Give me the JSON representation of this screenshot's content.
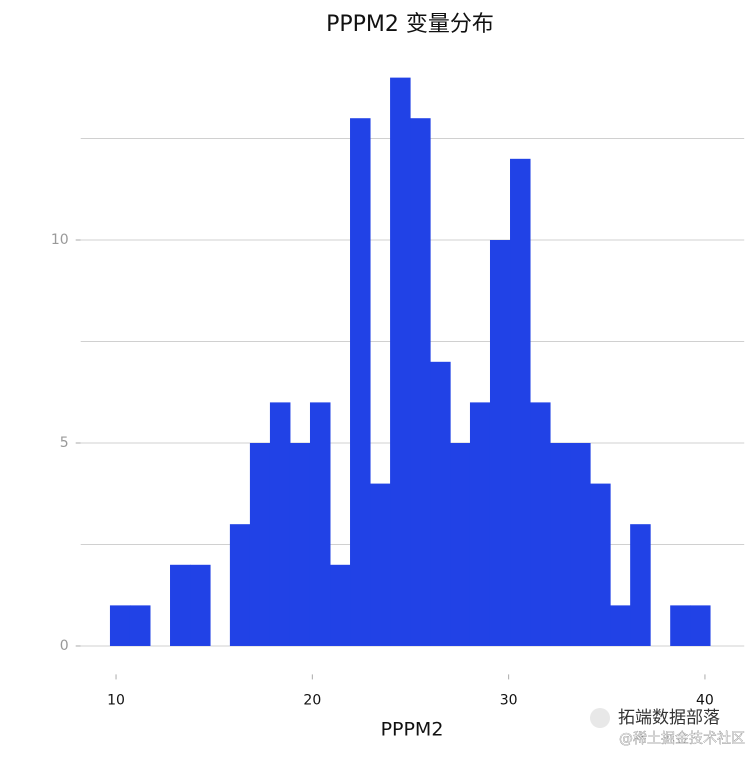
{
  "chart_data": {
    "type": "histogram",
    "title": "PPPM2 变量分布",
    "x_label": "PPPM2",
    "bins": [
      9.69,
      10.71,
      11.73,
      12.75,
      13.77,
      14.79,
      15.8,
      16.82,
      17.84,
      18.86,
      19.88,
      20.9,
      21.92,
      22.94,
      23.96,
      24.98,
      26.0,
      27.02,
      28.03,
      29.05,
      30.07,
      31.09,
      32.11,
      33.13,
      34.15,
      35.17,
      36.19,
      37.21,
      38.23,
      39.25,
      40.26
    ],
    "values": [
      1,
      1,
      0,
      2,
      2,
      0,
      3,
      5,
      6,
      5,
      6,
      2,
      13,
      4,
      14,
      13,
      7,
      5,
      6,
      10,
      12,
      6,
      5,
      5,
      4,
      1,
      3,
      0,
      1,
      1
    ],
    "color": "#2142e6",
    "xlim": [
      8.2,
      42.0
    ],
    "xticks": [
      10,
      20,
      30,
      40
    ],
    "ylim": [
      -0.7,
      14.7
    ],
    "yticks": [
      0,
      5,
      10
    ],
    "minor_yticks": [
      2.5,
      7.5,
      12.5
    ],
    "grid": true,
    "watermarks": [
      "拓端数据部落",
      "@稀土掘金技术社区"
    ]
  }
}
